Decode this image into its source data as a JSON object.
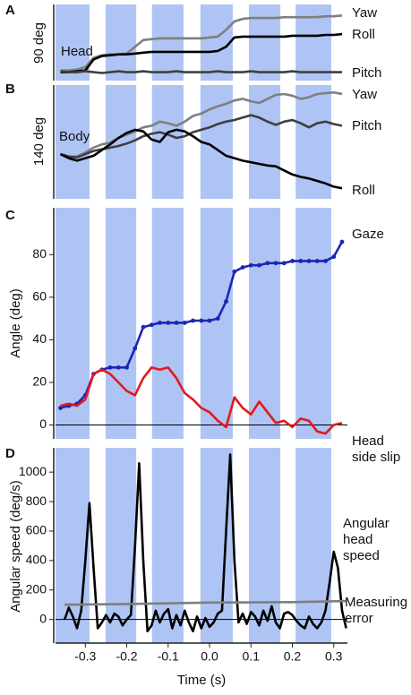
{
  "chart_data": [
    {
      "type": "line",
      "panel": "A",
      "annotation": "Head",
      "ylabel": "90 deg",
      "xlim": [
        -0.372,
        0.333
      ],
      "ylim": [
        -10,
        80
      ],
      "bands": [
        [
          -0.372,
          -0.29
        ],
        [
          -0.251,
          -0.177
        ],
        [
          -0.139,
          -0.063
        ],
        [
          -0.022,
          0.056
        ],
        [
          0.095,
          0.171
        ],
        [
          0.208,
          0.294
        ]
      ],
      "band_color": "#aec4f4",
      "x": [
        -0.36,
        -0.34,
        -0.32,
        -0.3,
        -0.28,
        -0.26,
        -0.24,
        -0.22,
        -0.2,
        -0.18,
        -0.16,
        -0.14,
        -0.12,
        -0.1,
        -0.08,
        -0.06,
        -0.04,
        -0.02,
        0,
        0.02,
        0.04,
        0.06,
        0.08,
        0.1,
        0.12,
        0.14,
        0.16,
        0.18,
        0.2,
        0.22,
        0.24,
        0.26,
        0.28,
        0.3,
        0.32
      ],
      "series": [
        {
          "name": [
            "Yaw"
          ],
          "color": "#7f7f7f",
          "values": [
            2,
            2,
            3,
            6,
            17,
            20,
            21,
            21,
            22,
            30,
            38,
            39,
            40,
            40,
            40,
            40,
            40,
            40,
            41,
            42,
            50,
            60,
            63,
            64,
            64,
            64,
            64,
            65,
            65,
            65,
            65,
            65,
            66,
            66,
            67
          ]
        },
        {
          "name": [
            "Roll"
          ],
          "color": "#000000",
          "values": [
            0,
            0,
            1,
            2,
            15,
            19,
            20,
            21,
            21,
            22,
            23,
            24,
            24,
            24,
            24,
            24,
            24,
            24,
            24,
            25,
            30,
            41,
            42,
            42,
            42,
            42,
            42,
            42,
            43,
            43,
            43,
            43,
            44,
            44,
            45
          ]
        },
        {
          "name": [
            "Pitch"
          ],
          "color": "#3f3f3f",
          "values": [
            1,
            0,
            0,
            1,
            0,
            -1,
            0,
            1,
            0,
            0,
            1,
            0,
            0,
            0,
            1,
            0,
            0,
            0,
            0,
            1,
            0,
            0,
            0,
            1,
            0,
            0,
            0,
            0,
            1,
            0,
            0,
            0,
            0,
            0,
            0
          ]
        }
      ]
    },
    {
      "type": "line",
      "panel": "B",
      "annotation": "Body",
      "ylabel": "140 deg",
      "xlim": [
        -0.372,
        0.333
      ],
      "ylim": [
        -55,
        85
      ],
      "bands": [
        [
          -0.372,
          -0.29
        ],
        [
          -0.251,
          -0.177
        ],
        [
          -0.139,
          -0.063
        ],
        [
          -0.022,
          0.056
        ],
        [
          0.095,
          0.171
        ],
        [
          0.208,
          0.294
        ]
      ],
      "band_color": "#aec4f4",
      "x": [
        -0.36,
        -0.34,
        -0.32,
        -0.3,
        -0.28,
        -0.26,
        -0.24,
        -0.22,
        -0.2,
        -0.18,
        -0.16,
        -0.14,
        -0.12,
        -0.1,
        -0.08,
        -0.06,
        -0.04,
        -0.02,
        0,
        0.02,
        0.04,
        0.06,
        0.08,
        0.1,
        0.12,
        0.14,
        0.16,
        0.18,
        0.2,
        0.22,
        0.24,
        0.26,
        0.28,
        0.3,
        0.32
      ],
      "series": [
        {
          "name": [
            "Yaw"
          ],
          "color": "#7f7f7f",
          "values": [
            0,
            -3,
            -3,
            2,
            8,
            12,
            14,
            20,
            24,
            28,
            33,
            35,
            40,
            38,
            35,
            40,
            47,
            50,
            55,
            59,
            62,
            66,
            68,
            65,
            63,
            68,
            73,
            74,
            72,
            68,
            70,
            74,
            75,
            76,
            74
          ]
        },
        {
          "name": [
            "Pitch"
          ],
          "color": "#3f3f3f",
          "values": [
            0,
            -3,
            -4,
            0,
            4,
            6,
            8,
            10,
            13,
            17,
            22,
            25,
            27,
            24,
            20,
            22,
            27,
            30,
            33,
            37,
            40,
            42,
            45,
            48,
            45,
            40,
            36,
            40,
            42,
            38,
            33,
            38,
            40,
            37,
            35
          ]
        },
        {
          "name": [
            "Roll"
          ],
          "color": "#000000",
          "values": [
            0,
            -5,
            -8,
            -5,
            -2,
            5,
            12,
            20,
            26,
            30,
            28,
            18,
            15,
            27,
            30,
            28,
            22,
            15,
            12,
            5,
            -2,
            -5,
            -8,
            -10,
            -12,
            -14,
            -15,
            -20,
            -25,
            -28,
            -30,
            -33,
            -36,
            -40,
            -42
          ]
        }
      ]
    },
    {
      "type": "line",
      "panel": "C",
      "ylabel": "Angle (deg)",
      "xlim": [
        -0.372,
        0.333
      ],
      "ylim": [
        -6.5,
        102
      ],
      "yticks": [
        0,
        20,
        40,
        60,
        80
      ],
      "zero_line": true,
      "bands": [
        [
          -0.372,
          -0.29
        ],
        [
          -0.251,
          -0.177
        ],
        [
          -0.139,
          -0.063
        ],
        [
          -0.022,
          0.056
        ],
        [
          0.095,
          0.171
        ],
        [
          0.208,
          0.294
        ]
      ],
      "band_color": "#aec4f4",
      "x": [
        -0.36,
        -0.34,
        -0.32,
        -0.3,
        -0.28,
        -0.26,
        -0.24,
        -0.22,
        -0.2,
        -0.18,
        -0.16,
        -0.14,
        -0.12,
        -0.1,
        -0.08,
        -0.06,
        -0.04,
        -0.02,
        0,
        0.02,
        0.04,
        0.06,
        0.08,
        0.1,
        0.12,
        0.14,
        0.16,
        0.18,
        0.2,
        0.22,
        0.24,
        0.26,
        0.28,
        0.3,
        0.32
      ],
      "series": [
        {
          "name": [
            "Gaze"
          ],
          "color": "#1c26b4",
          "markers": true,
          "values": [
            8,
            9,
            10,
            14,
            24,
            26,
            27,
            27,
            27,
            36,
            46,
            47,
            48,
            48,
            48,
            48,
            49,
            49,
            49,
            50,
            58,
            72,
            74,
            75,
            75,
            76,
            76,
            76,
            77,
            77,
            77,
            77,
            77,
            79,
            86
          ]
        },
        {
          "name": [
            "Head",
            "side slip"
          ],
          "color": "#e5171c",
          "values": [
            9,
            10,
            9,
            12,
            24,
            26,
            24,
            20,
            16,
            14,
            22,
            27,
            26,
            27,
            22,
            15,
            12,
            8,
            6,
            2,
            -1,
            13,
            8,
            5,
            11,
            6,
            1,
            2,
            -1,
            3,
            2,
            -3,
            -4,
            0,
            1
          ]
        }
      ]
    },
    {
      "type": "line",
      "panel": "D",
      "ylabel": "Angular speed (deg/s)",
      "xlabel": "Time (s)",
      "xlim": [
        -0.372,
        0.333
      ],
      "ylim": [
        -160,
        1165
      ],
      "yticks": [
        0,
        200,
        400,
        600,
        800,
        1000
      ],
      "zero_line": true,
      "xticks": [
        -0.3,
        -0.2,
        -0.1,
        {
          "value": 0,
          "label": "0.0"
        },
        0.1,
        0.2,
        0.3
      ],
      "bands": [
        [
          -0.372,
          -0.29
        ],
        [
          -0.251,
          -0.177
        ],
        [
          -0.139,
          -0.063
        ],
        [
          -0.022,
          0.056
        ],
        [
          0.095,
          0.171
        ],
        [
          0.208,
          0.294
        ]
      ],
      "band_color": "#aec4f4",
      "x": [
        -0.35,
        -0.34,
        -0.33,
        -0.32,
        -0.31,
        -0.3,
        -0.29,
        -0.28,
        -0.27,
        -0.26,
        -0.25,
        -0.24,
        -0.23,
        -0.22,
        -0.21,
        -0.2,
        -0.19,
        -0.18,
        -0.17,
        -0.16,
        -0.15,
        -0.14,
        -0.13,
        -0.12,
        -0.11,
        -0.1,
        -0.09,
        -0.08,
        -0.07,
        -0.06,
        -0.05,
        -0.04,
        -0.03,
        -0.02,
        -0.01,
        0,
        0.01,
        0.02,
        0.03,
        0.04,
        0.05,
        0.06,
        0.07,
        0.08,
        0.09,
        0.1,
        0.11,
        0.12,
        0.13,
        0.14,
        0.15,
        0.16,
        0.17,
        0.18,
        0.19,
        0.2,
        0.21,
        0.22,
        0.23,
        0.24,
        0.25,
        0.26,
        0.27,
        0.28,
        0.29,
        0.3,
        0.31,
        0.32,
        0.33
      ],
      "series": [
        {
          "name": [
            "Angular",
            "head",
            "speed"
          ],
          "color": "#000000",
          "values": [
            0,
            80,
            20,
            -60,
            60,
            400,
            790,
            350,
            -60,
            -20,
            30,
            -20,
            40,
            20,
            -40,
            0,
            30,
            500,
            1060,
            400,
            -80,
            -40,
            60,
            -20,
            40,
            70,
            -60,
            30,
            -40,
            60,
            -20,
            -80,
            20,
            -60,
            10,
            -50,
            -20,
            40,
            60,
            600,
            1120,
            400,
            -20,
            40,
            -30,
            50,
            20,
            -40,
            60,
            -10,
            90,
            -20,
            -60,
            40,
            50,
            30,
            -10,
            -40,
            -60,
            20,
            -30,
            -60,
            -20,
            60,
            250,
            460,
            350,
            60,
            -60
          ]
        },
        {
          "name": [
            "Measuring",
            "error"
          ],
          "color": "#7f7f7f",
          "x": [
            -0.35,
            -0.2,
            0,
            0.2,
            0.33
          ],
          "values": [
            100,
            105,
            115,
            118,
            125
          ]
        }
      ]
    }
  ]
}
